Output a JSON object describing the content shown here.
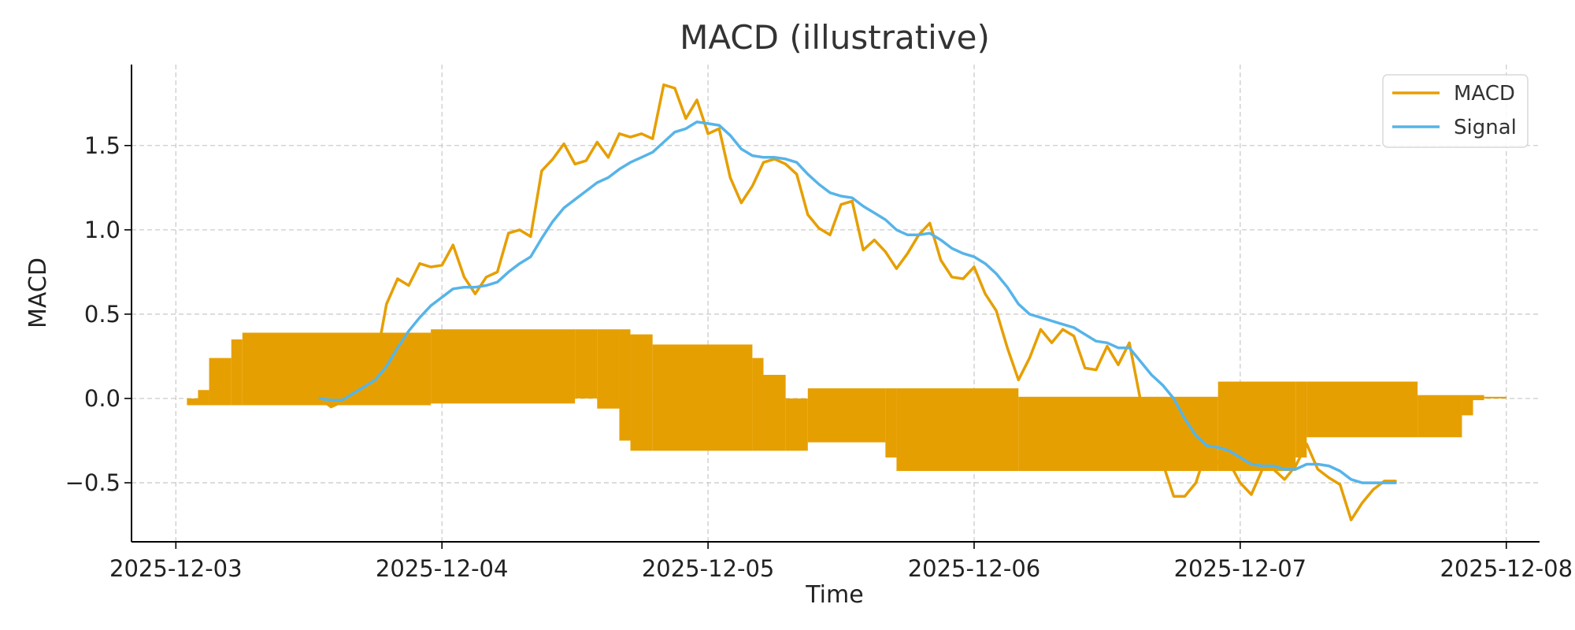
{
  "chart_data": {
    "type": "line",
    "title": "MACD (illustrative)",
    "xlabel": "Time",
    "ylabel": "MACD",
    "x_ticks": [
      "2025-12-03",
      "2025-12-04",
      "2025-12-05",
      "2025-12-06",
      "2025-12-07",
      "2025-12-08"
    ],
    "y_ticks": [
      "−0.5",
      "0.0",
      "0.5",
      "1.0",
      "1.5"
    ],
    "y_tick_values": [
      -0.5,
      0.0,
      0.5,
      1.0,
      1.5
    ],
    "xlim": [
      "2025-12-02 20:00",
      "2025-12-08 03:00"
    ],
    "ylim": [
      -0.85,
      1.98
    ],
    "grid": true,
    "legend": "top-right",
    "colors": {
      "macd": "#E69F00",
      "signal": "#56B4E9",
      "histogram": "#E69F00",
      "grid": "#cccccc"
    },
    "series": [
      {
        "name": "MACD",
        "x": [
          "2025-12-03 13:00",
          "2025-12-03 14:00",
          "2025-12-03 15:00",
          "2025-12-03 16:00",
          "2025-12-03 17:00",
          "2025-12-03 18:00",
          "2025-12-03 19:00",
          "2025-12-03 20:00",
          "2025-12-03 21:00",
          "2025-12-03 22:00",
          "2025-12-03 23:00",
          "2025-12-04 00:00",
          "2025-12-04 01:00",
          "2025-12-04 02:00",
          "2025-12-04 03:00",
          "2025-12-04 04:00",
          "2025-12-04 05:00",
          "2025-12-04 06:00",
          "2025-12-04 07:00",
          "2025-12-04 08:00",
          "2025-12-04 09:00",
          "2025-12-04 10:00",
          "2025-12-04 11:00",
          "2025-12-04 12:00",
          "2025-12-04 13:00",
          "2025-12-04 14:00",
          "2025-12-04 15:00",
          "2025-12-04 16:00",
          "2025-12-04 17:00",
          "2025-12-04 18:00",
          "2025-12-04 19:00",
          "2025-12-04 20:00",
          "2025-12-04 21:00",
          "2025-12-04 22:00",
          "2025-12-04 23:00",
          "2025-12-05 00:00",
          "2025-12-05 01:00",
          "2025-12-05 02:00",
          "2025-12-05 03:00",
          "2025-12-05 04:00",
          "2025-12-05 05:00",
          "2025-12-05 06:00",
          "2025-12-05 07:00",
          "2025-12-05 08:00",
          "2025-12-05 09:00",
          "2025-12-05 10:00",
          "2025-12-05 11:00",
          "2025-12-05 12:00",
          "2025-12-05 13:00",
          "2025-12-05 14:00",
          "2025-12-05 15:00",
          "2025-12-05 16:00",
          "2025-12-05 17:00",
          "2025-12-05 18:00",
          "2025-12-05 19:00",
          "2025-12-05 20:00",
          "2025-12-05 21:00",
          "2025-12-05 22:00",
          "2025-12-05 23:00",
          "2025-12-06 00:00",
          "2025-12-06 01:00",
          "2025-12-06 02:00",
          "2025-12-06 03:00",
          "2025-12-06 04:00",
          "2025-12-06 05:00",
          "2025-12-06 06:00",
          "2025-12-06 07:00",
          "2025-12-06 08:00",
          "2025-12-06 09:00",
          "2025-12-06 10:00",
          "2025-12-06 11:00",
          "2025-12-06 12:00",
          "2025-12-06 13:00",
          "2025-12-06 14:00",
          "2025-12-06 15:00",
          "2025-12-06 16:00",
          "2025-12-06 17:00",
          "2025-12-06 18:00",
          "2025-12-06 19:00",
          "2025-12-06 20:00",
          "2025-12-06 21:00",
          "2025-12-06 22:00",
          "2025-12-06 23:00",
          "2025-12-07 00:00",
          "2025-12-07 01:00",
          "2025-12-07 02:00",
          "2025-12-07 03:00",
          "2025-12-07 04:00",
          "2025-12-07 05:00",
          "2025-12-07 06:00",
          "2025-12-07 07:00",
          "2025-12-07 08:00",
          "2025-12-07 09:00",
          "2025-12-07 10:00",
          "2025-12-07 11:00",
          "2025-12-07 12:00",
          "2025-12-07 13:00",
          "2025-12-07 14:00"
        ],
        "values": [
          0.0,
          -0.05,
          -0.02,
          0.05,
          0.1,
          0.2,
          0.56,
          0.71,
          0.67,
          0.8,
          0.78,
          0.79,
          0.91,
          0.72,
          0.62,
          0.72,
          0.75,
          0.98,
          1.0,
          0.96,
          1.35,
          1.42,
          1.51,
          1.39,
          1.41,
          1.52,
          1.43,
          1.57,
          1.55,
          1.57,
          1.54,
          1.86,
          1.84,
          1.66,
          1.77,
          1.57,
          1.6,
          1.31,
          1.16,
          1.26,
          1.4,
          1.42,
          1.39,
          1.33,
          1.09,
          1.01,
          0.97,
          1.15,
          1.17,
          0.88,
          0.94,
          0.87,
          0.77,
          0.86,
          0.97,
          1.04,
          0.82,
          0.72,
          0.71,
          0.78,
          0.62,
          0.52,
          0.3,
          0.11,
          0.24,
          0.41,
          0.33,
          0.41,
          0.37,
          0.18,
          0.17,
          0.31,
          0.2,
          0.33,
          -0.01,
          -0.2,
          -0.38,
          -0.58,
          -0.58,
          -0.5,
          -0.3,
          -0.38,
          -0.38,
          -0.5,
          -0.57,
          -0.42,
          -0.42,
          -0.48,
          -0.4,
          -0.27,
          -0.42,
          -0.47,
          -0.51,
          -0.72,
          -0.62,
          -0.54,
          -0.49,
          -0.49
        ]
      },
      {
        "name": "Signal",
        "x": [
          "2025-12-03 13:00",
          "2025-12-03 14:00",
          "2025-12-03 15:00",
          "2025-12-03 16:00",
          "2025-12-03 17:00",
          "2025-12-03 18:00",
          "2025-12-03 19:00",
          "2025-12-03 20:00",
          "2025-12-03 21:00",
          "2025-12-03 22:00",
          "2025-12-03 23:00",
          "2025-12-04 00:00",
          "2025-12-04 01:00",
          "2025-12-04 02:00",
          "2025-12-04 03:00",
          "2025-12-04 04:00",
          "2025-12-04 05:00",
          "2025-12-04 06:00",
          "2025-12-04 07:00",
          "2025-12-04 08:00",
          "2025-12-04 09:00",
          "2025-12-04 10:00",
          "2025-12-04 11:00",
          "2025-12-04 12:00",
          "2025-12-04 13:00",
          "2025-12-04 14:00",
          "2025-12-04 15:00",
          "2025-12-04 16:00",
          "2025-12-04 17:00",
          "2025-12-04 18:00",
          "2025-12-04 19:00",
          "2025-12-04 20:00",
          "2025-12-04 21:00",
          "2025-12-04 22:00",
          "2025-12-04 23:00",
          "2025-12-05 00:00",
          "2025-12-05 01:00",
          "2025-12-05 02:00",
          "2025-12-05 03:00",
          "2025-12-05 04:00",
          "2025-12-05 05:00",
          "2025-12-05 06:00",
          "2025-12-05 07:00",
          "2025-12-05 08:00",
          "2025-12-05 09:00",
          "2025-12-05 10:00",
          "2025-12-05 11:00",
          "2025-12-05 12:00",
          "2025-12-05 13:00",
          "2025-12-05 14:00",
          "2025-12-05 15:00",
          "2025-12-05 16:00",
          "2025-12-05 17:00",
          "2025-12-05 18:00",
          "2025-12-05 19:00",
          "2025-12-05 20:00",
          "2025-12-05 21:00",
          "2025-12-05 22:00",
          "2025-12-05 23:00",
          "2025-12-06 00:00",
          "2025-12-06 01:00",
          "2025-12-06 02:00",
          "2025-12-06 03:00",
          "2025-12-06 04:00",
          "2025-12-06 05:00",
          "2025-12-06 06:00",
          "2025-12-06 07:00",
          "2025-12-06 08:00",
          "2025-12-06 09:00",
          "2025-12-06 10:00",
          "2025-12-06 11:00",
          "2025-12-06 12:00",
          "2025-12-06 13:00",
          "2025-12-06 14:00",
          "2025-12-06 15:00",
          "2025-12-06 16:00",
          "2025-12-06 17:00",
          "2025-12-06 18:00",
          "2025-12-06 19:00",
          "2025-12-06 20:00",
          "2025-12-06 21:00",
          "2025-12-06 22:00",
          "2025-12-06 23:00",
          "2025-12-07 00:00",
          "2025-12-07 01:00",
          "2025-12-07 02:00",
          "2025-12-07 03:00",
          "2025-12-07 04:00",
          "2025-12-07 05:00",
          "2025-12-07 06:00",
          "2025-12-07 07:00",
          "2025-12-07 08:00",
          "2025-12-07 09:00",
          "2025-12-07 10:00",
          "2025-12-07 11:00",
          "2025-12-07 12:00",
          "2025-12-07 13:00",
          "2025-12-07 14:00"
        ],
        "values": [
          0.0,
          -0.01,
          -0.01,
          0.03,
          0.07,
          0.11,
          0.19,
          0.3,
          0.4,
          0.48,
          0.55,
          0.6,
          0.65,
          0.66,
          0.66,
          0.67,
          0.69,
          0.75,
          0.8,
          0.84,
          0.95,
          1.05,
          1.13,
          1.18,
          1.23,
          1.28,
          1.31,
          1.36,
          1.4,
          1.43,
          1.46,
          1.52,
          1.58,
          1.6,
          1.64,
          1.63,
          1.62,
          1.56,
          1.48,
          1.44,
          1.43,
          1.43,
          1.42,
          1.4,
          1.33,
          1.27,
          1.22,
          1.2,
          1.19,
          1.14,
          1.1,
          1.06,
          1.0,
          0.97,
          0.97,
          0.98,
          0.94,
          0.89,
          0.86,
          0.84,
          0.8,
          0.74,
          0.66,
          0.56,
          0.5,
          0.48,
          0.46,
          0.44,
          0.42,
          0.38,
          0.34,
          0.33,
          0.3,
          0.3,
          0.22,
          0.14,
          0.08,
          0.0,
          -0.12,
          -0.22,
          -0.28,
          -0.29,
          -0.31,
          -0.35,
          -0.39,
          -0.4,
          -0.4,
          -0.42,
          -0.42,
          -0.39,
          -0.39,
          -0.4,
          -0.43,
          -0.48,
          -0.5,
          -0.5,
          -0.5,
          -0.5
        ]
      }
    ],
    "histogram": [
      {
        "start": "2025-12-03 01:00",
        "end": "2025-12-03 02:00",
        "low": -0.04,
        "high": 0.0
      },
      {
        "start": "2025-12-03 02:00",
        "end": "2025-12-03 03:00",
        "low": -0.04,
        "high": 0.05
      },
      {
        "start": "2025-12-03 03:00",
        "end": "2025-12-03 05:00",
        "low": -0.04,
        "high": 0.24
      },
      {
        "start": "2025-12-03 05:00",
        "end": "2025-12-03 06:00",
        "low": -0.04,
        "high": 0.35
      },
      {
        "start": "2025-12-03 06:00",
        "end": "2025-12-03 23:00",
        "low": -0.04,
        "high": 0.39
      },
      {
        "start": "2025-12-03 23:00",
        "end": "2025-12-04 12:00",
        "low": -0.03,
        "high": 0.41
      },
      {
        "start": "2025-12-04 12:00",
        "end": "2025-12-04 14:00",
        "low": 0.0,
        "high": 0.41
      },
      {
        "start": "2025-12-04 14:00",
        "end": "2025-12-04 16:00",
        "low": -0.06,
        "high": 0.41
      },
      {
        "start": "2025-12-04 16:00",
        "end": "2025-12-04 17:00",
        "low": -0.25,
        "high": 0.41
      },
      {
        "start": "2025-12-04 17:00",
        "end": "2025-12-04 19:00",
        "low": -0.31,
        "high": 0.38
      },
      {
        "start": "2025-12-04 19:00",
        "end": "2025-12-05 04:00",
        "low": -0.31,
        "high": 0.32
      },
      {
        "start": "2025-12-05 04:00",
        "end": "2025-12-05 05:00",
        "low": -0.31,
        "high": 0.24
      },
      {
        "start": "2025-12-05 05:00",
        "end": "2025-12-05 07:00",
        "low": -0.31,
        "high": 0.14
      },
      {
        "start": "2025-12-05 07:00",
        "end": "2025-12-05 09:00",
        "low": -0.31,
        "high": 0.0
      },
      {
        "start": "2025-12-05 09:00",
        "end": "2025-12-05 16:00",
        "low": -0.26,
        "high": 0.06
      },
      {
        "start": "2025-12-05 16:00",
        "end": "2025-12-05 17:00",
        "low": -0.35,
        "high": 0.06
      },
      {
        "start": "2025-12-05 17:00",
        "end": "2025-12-06 04:00",
        "low": -0.43,
        "high": 0.06
      },
      {
        "start": "2025-12-06 04:00",
        "end": "2025-12-06 22:00",
        "low": -0.43,
        "high": 0.01
      },
      {
        "start": "2025-12-06 22:00",
        "end": "2025-12-07 05:00",
        "low": -0.43,
        "high": 0.1
      },
      {
        "start": "2025-12-07 05:00",
        "end": "2025-12-07 06:00",
        "low": -0.35,
        "high": 0.1
      },
      {
        "start": "2025-12-07 06:00",
        "end": "2025-12-07 16:00",
        "low": -0.23,
        "high": 0.1
      },
      {
        "start": "2025-12-07 16:00",
        "end": "2025-12-07 20:00",
        "low": -0.23,
        "high": 0.02
      },
      {
        "start": "2025-12-07 20:00",
        "end": "2025-12-07 21:00",
        "low": -0.1,
        "high": 0.02
      },
      {
        "start": "2025-12-07 21:00",
        "end": "2025-12-07 22:00",
        "low": -0.01,
        "high": 0.02
      },
      {
        "start": "2025-12-07 22:00",
        "end": "2025-12-08 00:00",
        "low": 0.0,
        "high": 0.01
      }
    ]
  }
}
